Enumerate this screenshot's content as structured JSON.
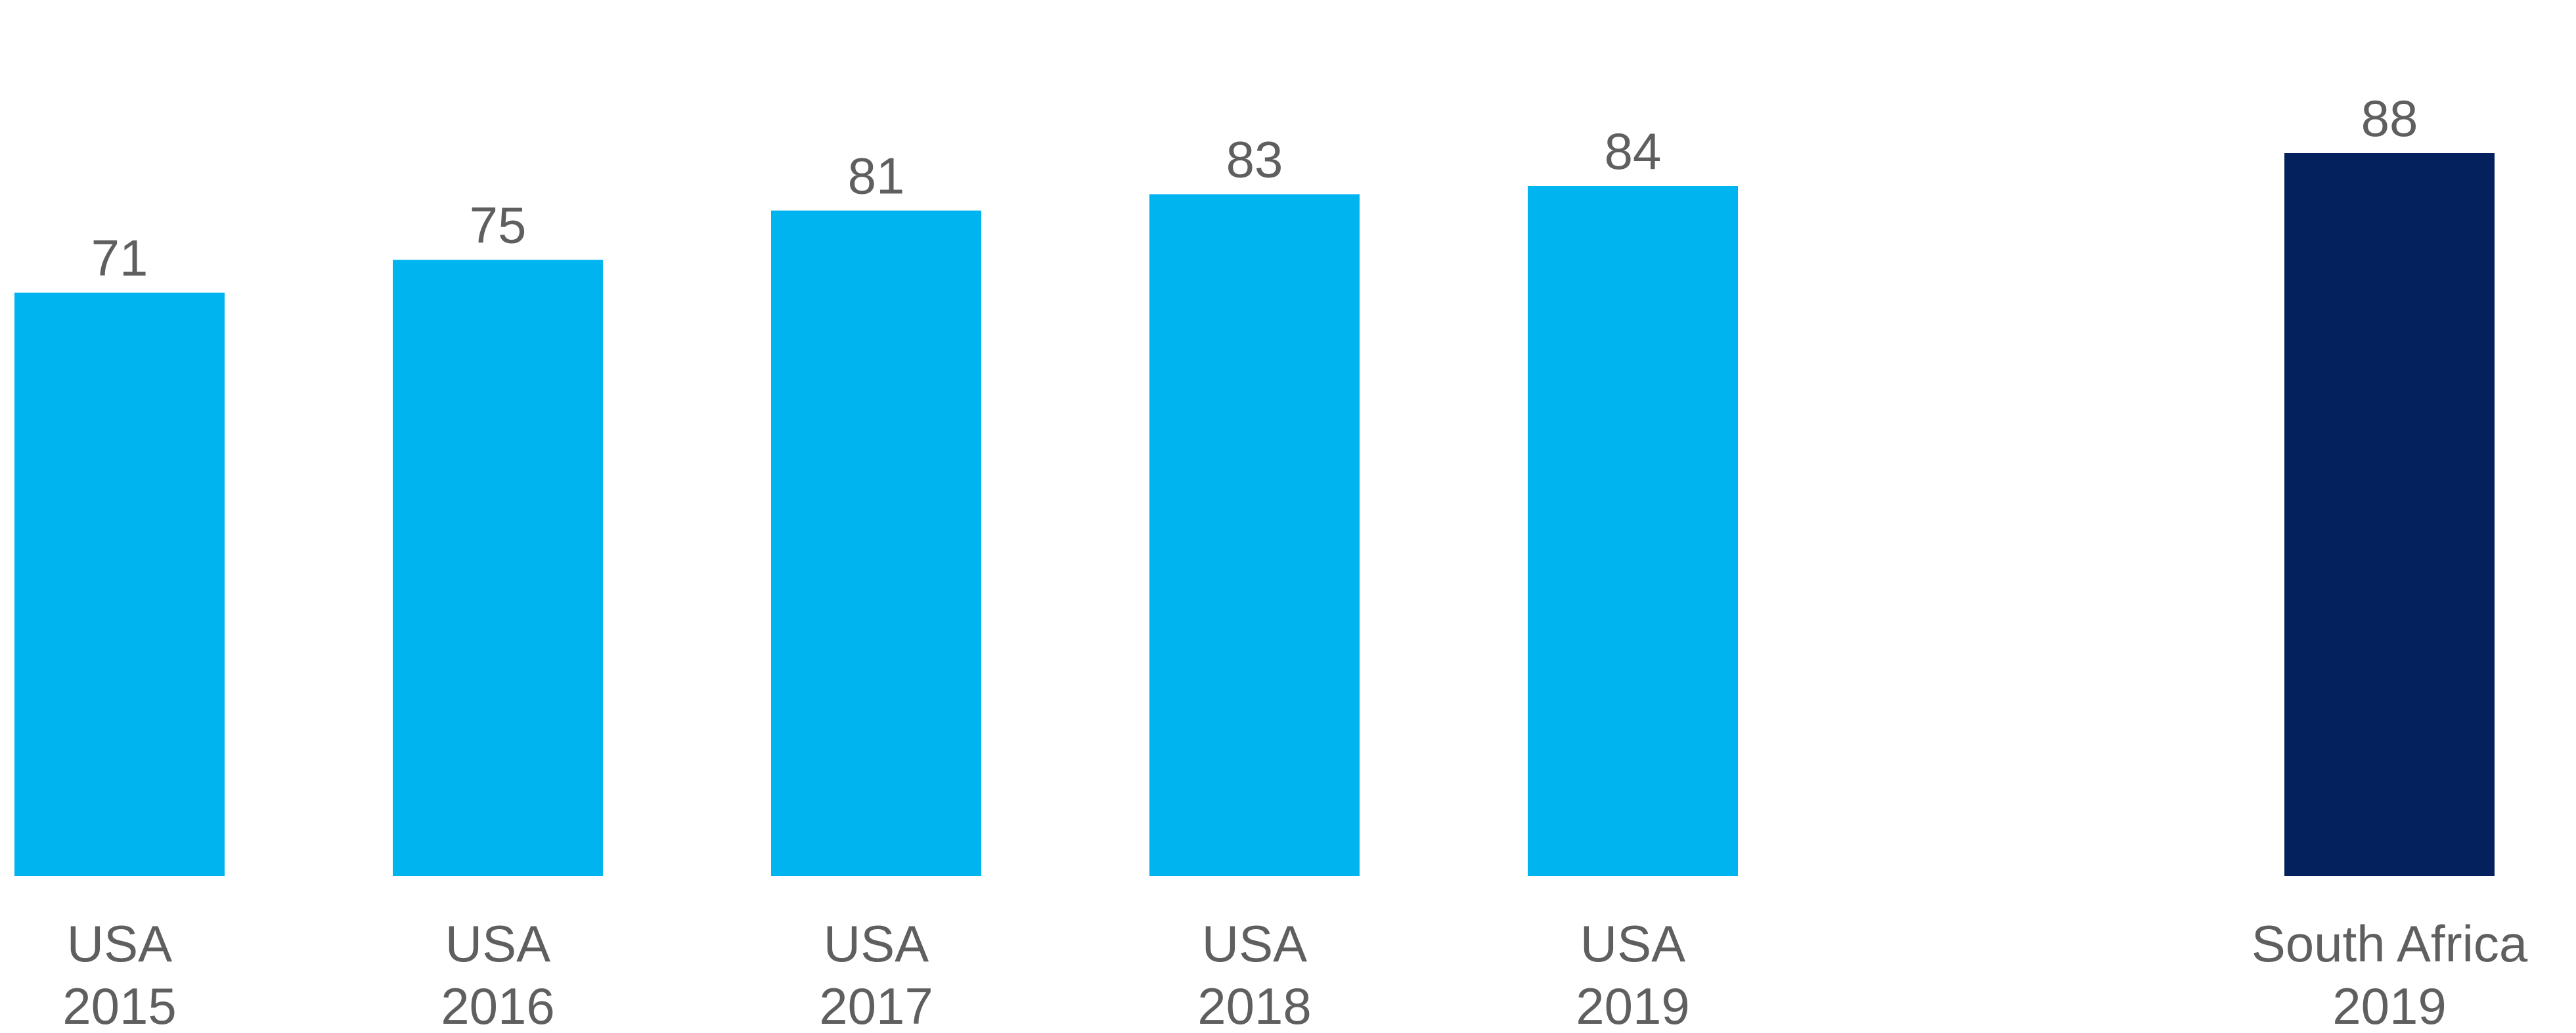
{
  "chart_data": {
    "type": "bar",
    "title": "",
    "xlabel": "",
    "ylabel": "",
    "ylim": [
      0,
      88
    ],
    "grid": false,
    "legend": "none",
    "categories": [
      [
        "USA",
        "2015"
      ],
      [
        "USA",
        "2016"
      ],
      [
        "USA",
        "2017"
      ],
      [
        "USA",
        "2018"
      ],
      [
        "USA",
        "2019"
      ],
      [
        "South Africa",
        "2019"
      ]
    ],
    "values": [
      71,
      75,
      81,
      83,
      84,
      88
    ],
    "colors": [
      "#00b5ef",
      "#00b5ef",
      "#00b5ef",
      "#00b5ef",
      "#00b5ef",
      "#04215e"
    ]
  }
}
